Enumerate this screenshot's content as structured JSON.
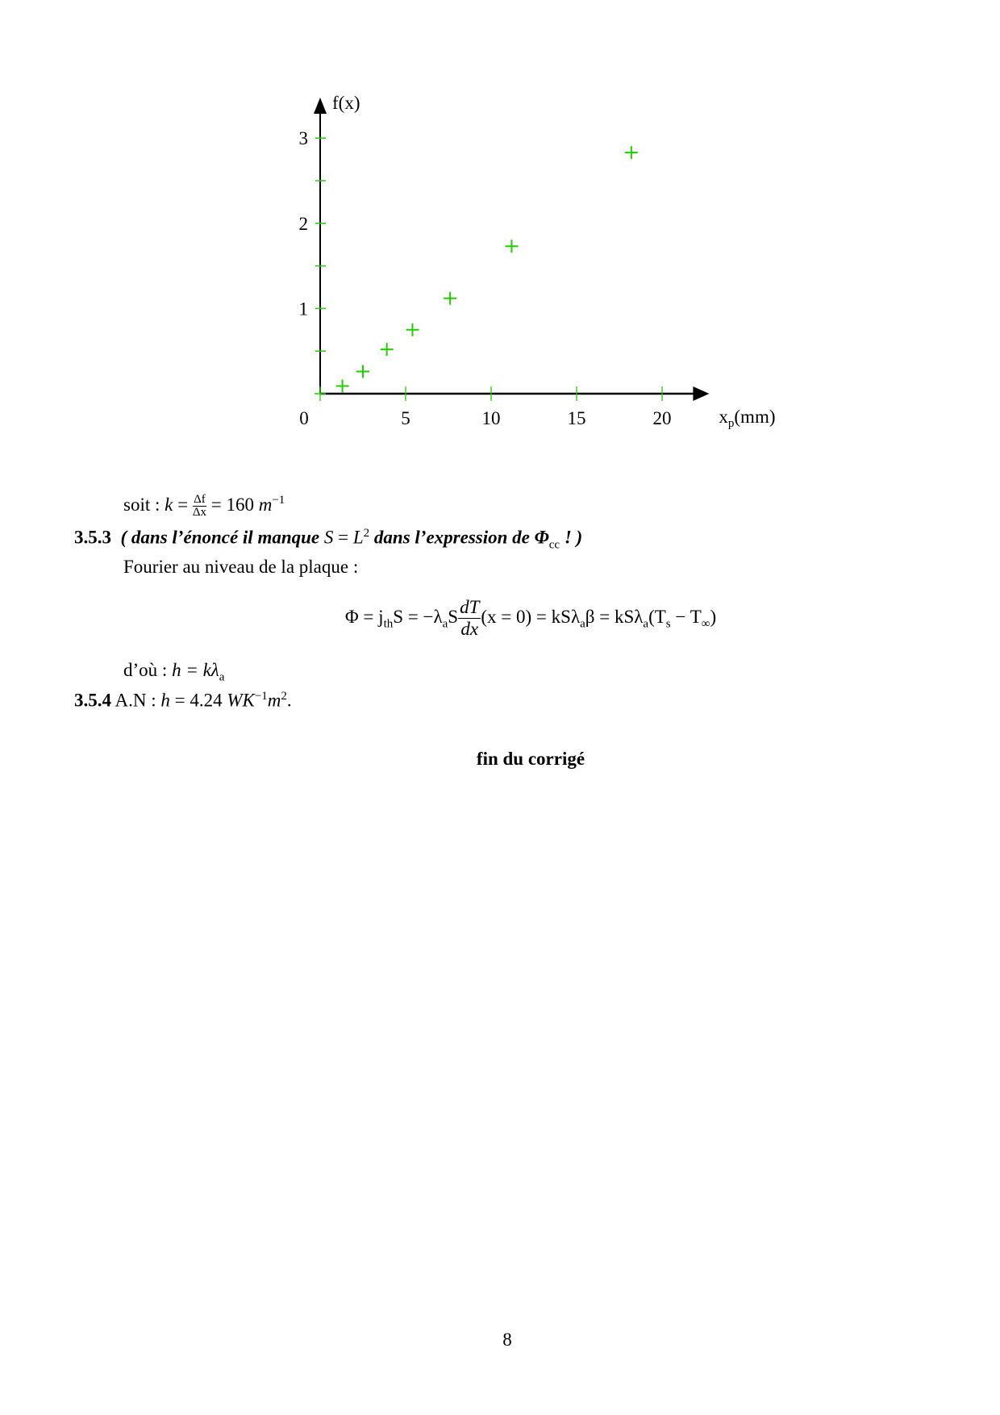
{
  "chart_data": {
    "type": "scatter",
    "xlabel": "x",
    "xlabel_sub": "p",
    "xlabel_unit": "(mm)",
    "ylabel": "f(x)",
    "xlim": [
      0,
      22
    ],
    "ylim": [
      0,
      3.4
    ],
    "x_ticks": [
      0,
      5,
      10,
      15,
      20
    ],
    "x_tick_labels": [
      "0",
      "5",
      "10",
      "15",
      "20"
    ],
    "y_ticks": [
      0.5,
      1,
      1.5,
      2,
      2.5,
      3
    ],
    "y_tick_labels": [
      "1",
      "2",
      "3"
    ],
    "y_labeled_ticks": [
      1,
      2,
      3
    ],
    "grid": false,
    "marker": "plus",
    "colors": {
      "points": "#22cc00",
      "ticks": "#22cc00",
      "axes": "#000000"
    },
    "x": [
      1.3,
      2.5,
      3.9,
      5.4,
      7.6,
      11.2,
      18.2
    ],
    "y": [
      0.09,
      0.26,
      0.52,
      0.75,
      1.12,
      1.73,
      2.83
    ]
  },
  "text": {
    "soit_prefix": "soit : ",
    "soit_k": "k",
    "soit_eq": " = ",
    "soit_num": "Δf",
    "soit_den": "Δx",
    "soit_value": " = 160 ",
    "soit_unit": "m",
    "soit_exp": "−1",
    "s353_num": "3.5.3",
    "s353_a": "( dans l’énoncé il manque ",
    "s353_math": "S",
    "s353_eq": " = ",
    "s353_L": "L",
    "s353_exp": "2",
    "s353_b": " dans l’expression de Φ",
    "s353_sub": "cc",
    "s353_c": " ! )",
    "fourier": "Fourier au niveau de la plaque :",
    "eq_a": "Φ = j",
    "eq_a_sub": "th",
    "eq_b": "S = −λ",
    "eq_b_sub": "a",
    "eq_c": "S",
    "eq_num": "dT",
    "eq_den": "dx",
    "eq_d": "(x = 0) = kSλ",
    "eq_d_sub": "a",
    "eq_e": "β = kSλ",
    "eq_e_sub": "a",
    "eq_f": "(T",
    "eq_f_sub": "s",
    "eq_g": " − T",
    "eq_g_sub": "∞",
    "eq_h": ")",
    "dou_prefix": "d’où : ",
    "dou_math": "h = kλ",
    "dou_sub": "a",
    "s354_num": "3.5.4",
    "s354_a": " A.N : ",
    "s354_math": "h",
    "s354_b": " = 4.24 ",
    "s354_c": "WK",
    "s354_exp1": "−1",
    "s354_d": "m",
    "s354_exp2": "2",
    "s354_e": ".",
    "fin": "fin du corrigé",
    "page_number": "8"
  }
}
